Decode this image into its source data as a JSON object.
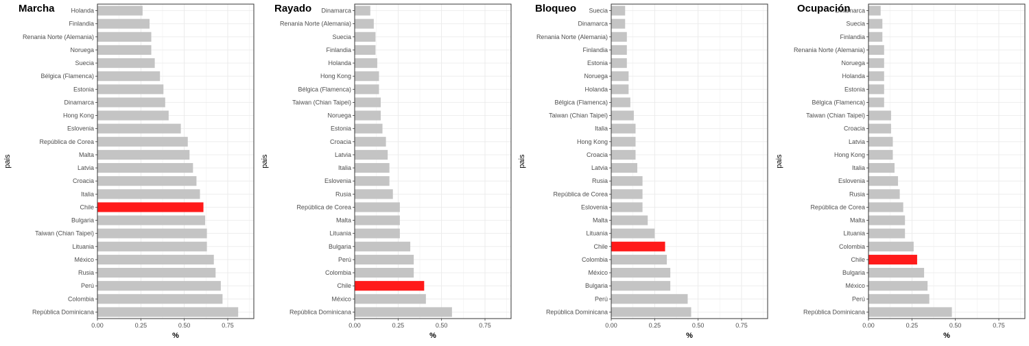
{
  "chart_data": [
    {
      "type": "bar",
      "orientation": "horizontal",
      "title": "Marcha",
      "xlabel": "%",
      "ylabel": "pais",
      "xlim": [
        0,
        0.9
      ],
      "xticks": [
        "0.00",
        "0.25",
        "0.50",
        "0.75"
      ],
      "grid": true,
      "highlight_color": "#ff1a1a",
      "bar_color": "#c4c4c4",
      "categories": [
        "Holanda",
        "Finlandia",
        "Renania Norte (Alemania)",
        "Noruega",
        "Suecia",
        "Bélgica (Flamenca)",
        "Estonia",
        "Dinamarca",
        "Hong Kong",
        "Eslovenia",
        "República de Corea",
        "Malta",
        "Latvia",
        "Croacia",
        "Italia",
        "Chile",
        "Bulgaria",
        "Taiwan (Chian Taipei)",
        "Lituania",
        "México",
        "Rusia",
        "Perú",
        "Colombia",
        "República Dominicana"
      ],
      "values": [
        0.26,
        0.3,
        0.31,
        0.31,
        0.33,
        0.36,
        0.38,
        0.39,
        0.41,
        0.48,
        0.52,
        0.53,
        0.55,
        0.57,
        0.59,
        0.61,
        0.62,
        0.63,
        0.63,
        0.67,
        0.68,
        0.71,
        0.72,
        0.81
      ],
      "highlight": "Chile"
    },
    {
      "type": "bar",
      "orientation": "horizontal",
      "title": "Rayado",
      "xlabel": "%",
      "ylabel": "pais",
      "xlim": [
        0,
        0.9
      ],
      "xticks": [
        "0.00",
        "0.25",
        "0.50",
        "0.75"
      ],
      "grid": true,
      "highlight_color": "#ff1a1a",
      "bar_color": "#c4c4c4",
      "categories": [
        "Dinamarca",
        "Renania Norte (Alemania)",
        "Suecia",
        "Finlandia",
        "Holanda",
        "Hong Kong",
        "Bélgica (Flamenca)",
        "Taiwan (Chian Taipei)",
        "Noruega",
        "Estonia",
        "Croacia",
        "Latvia",
        "Italia",
        "Eslovenia",
        "Rusia",
        "República de Corea",
        "Malta",
        "Lituania",
        "Bulgaria",
        "Perú",
        "Colombia",
        "Chile",
        "México",
        "República Dominicana"
      ],
      "values": [
        0.09,
        0.11,
        0.12,
        0.12,
        0.13,
        0.14,
        0.14,
        0.15,
        0.15,
        0.16,
        0.18,
        0.19,
        0.2,
        0.2,
        0.22,
        0.26,
        0.26,
        0.26,
        0.32,
        0.34,
        0.34,
        0.4,
        0.41,
        0.56
      ],
      "highlight": "Chile"
    },
    {
      "type": "bar",
      "orientation": "horizontal",
      "title": "Bloqueo",
      "xlabel": "%",
      "ylabel": "pais",
      "xlim": [
        0,
        0.9
      ],
      "xticks": [
        "0.00",
        "0.25",
        "0.50",
        "0.75"
      ],
      "grid": true,
      "highlight_color": "#ff1a1a",
      "bar_color": "#c4c4c4",
      "categories": [
        "Suecia",
        "Dinamarca",
        "Renania Norte (Alemania)",
        "Finlandia",
        "Estonia",
        "Noruega",
        "Holanda",
        "Bélgica (Flamenca)",
        "Taiwan (Chian Taipei)",
        "Italia",
        "Hong Kong",
        "Croacia",
        "Latvia",
        "Rusia",
        "República de Corea",
        "Eslovenia",
        "Malta",
        "Lituania",
        "Chile",
        "Colombia",
        "México",
        "Bulgaria",
        "Perú",
        "República Dominicana"
      ],
      "values": [
        0.08,
        0.08,
        0.09,
        0.09,
        0.09,
        0.1,
        0.1,
        0.11,
        0.13,
        0.14,
        0.14,
        0.14,
        0.15,
        0.18,
        0.18,
        0.18,
        0.21,
        0.25,
        0.31,
        0.32,
        0.34,
        0.34,
        0.44,
        0.46
      ],
      "highlight": "Chile"
    },
    {
      "type": "bar",
      "orientation": "horizontal",
      "title": "Ocupación",
      "xlabel": "%",
      "ylabel": "pais",
      "xlim": [
        0,
        0.9
      ],
      "xticks": [
        "0.00",
        "0.25",
        "0.50",
        "0.75"
      ],
      "grid": true,
      "highlight_color": "#ff1a1a",
      "bar_color": "#c4c4c4",
      "categories": [
        "Dinamarca",
        "Suecia",
        "Finlandia",
        "Renania Norte (Alemania)",
        "Noruega",
        "Holanda",
        "Estonia",
        "Bélgica (Flamenca)",
        "Taiwan (Chian Taipei)",
        "Croacia",
        "Latvia",
        "Hong Kong",
        "Italia",
        "Eslovenia",
        "Rusia",
        "República de Corea",
        "Malta",
        "Lituania",
        "Colombia",
        "Chile",
        "Bulgaria",
        "México",
        "Perú",
        "República Dominicana"
      ],
      "values": [
        0.07,
        0.08,
        0.08,
        0.09,
        0.09,
        0.09,
        0.09,
        0.09,
        0.13,
        0.13,
        0.14,
        0.14,
        0.15,
        0.17,
        0.18,
        0.2,
        0.21,
        0.21,
        0.26,
        0.28,
        0.32,
        0.34,
        0.35,
        0.48
      ],
      "highlight": "Chile"
    }
  ]
}
